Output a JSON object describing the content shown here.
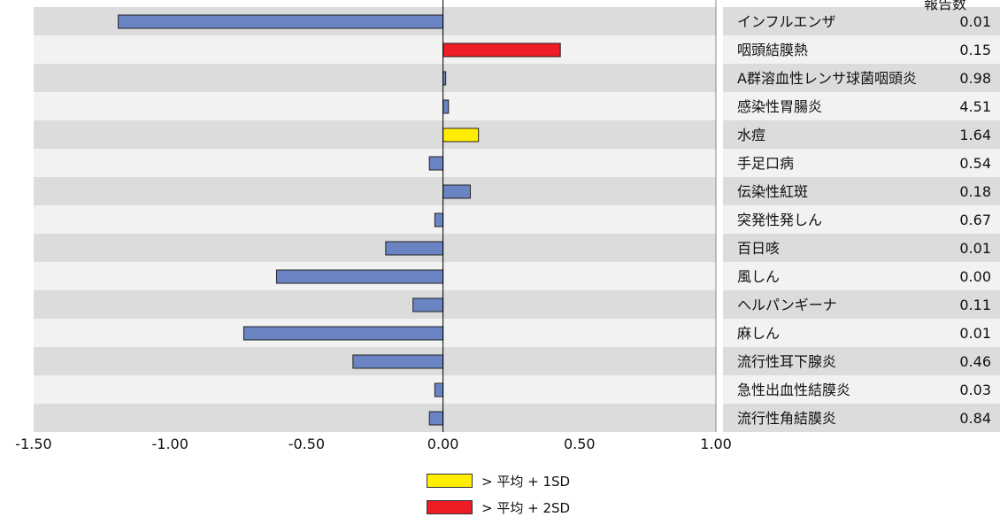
{
  "header": {
    "value_label": "報告数"
  },
  "chart_data": {
    "type": "bar",
    "orientation": "horizontal",
    "xlim": [
      -1.5,
      1.0
    ],
    "xticks": [
      "-1.50",
      "-1.00",
      "-0.50",
      "0.00",
      "0.50",
      "1.00"
    ],
    "grid": false,
    "rows": [
      {
        "disease": "インフルエンザ",
        "reports": "0.01",
        "value": -1.19,
        "level": "normal"
      },
      {
        "disease": "咽頭結膜熱",
        "reports": "0.15",
        "value": 0.43,
        "level": "sd2"
      },
      {
        "disease": "A群溶血性レンサ球菌咽頭炎",
        "reports": "0.98",
        "value": 0.01,
        "level": "normal"
      },
      {
        "disease": "感染性胃腸炎",
        "reports": "4.51",
        "value": 0.02,
        "level": "normal"
      },
      {
        "disease": "水痘",
        "reports": "1.64",
        "value": 0.13,
        "level": "sd1"
      },
      {
        "disease": "手足口病",
        "reports": "0.54",
        "value": -0.05,
        "level": "normal"
      },
      {
        "disease": "伝染性紅斑",
        "reports": "0.18",
        "value": 0.1,
        "level": "normal"
      },
      {
        "disease": "突発性発しん",
        "reports": "0.67",
        "value": -0.03,
        "level": "normal"
      },
      {
        "disease": "百日咳",
        "reports": "0.01",
        "value": -0.21,
        "level": "normal"
      },
      {
        "disease": "風しん",
        "reports": "0.00",
        "value": -0.61,
        "level": "normal"
      },
      {
        "disease": "ヘルパンギーナ",
        "reports": "0.11",
        "value": -0.11,
        "level": "normal"
      },
      {
        "disease": "麻しん",
        "reports": "0.01",
        "value": -0.73,
        "level": "normal"
      },
      {
        "disease": "流行性耳下腺炎",
        "reports": "0.46",
        "value": -0.33,
        "level": "normal"
      },
      {
        "disease": "急性出血性結膜炎",
        "reports": "0.03",
        "value": -0.03,
        "level": "normal"
      },
      {
        "disease": "流行性角結膜炎",
        "reports": "0.84",
        "value": -0.05,
        "level": "normal"
      }
    ],
    "colors": {
      "normal": "#6a83c3",
      "sd1": "#ffee00",
      "sd2": "#ee1c24"
    },
    "legend": [
      {
        "label": "> 平均 + 1SD",
        "level": "sd1"
      },
      {
        "label": "> 平均 + 2SD",
        "level": "sd2"
      }
    ]
  }
}
